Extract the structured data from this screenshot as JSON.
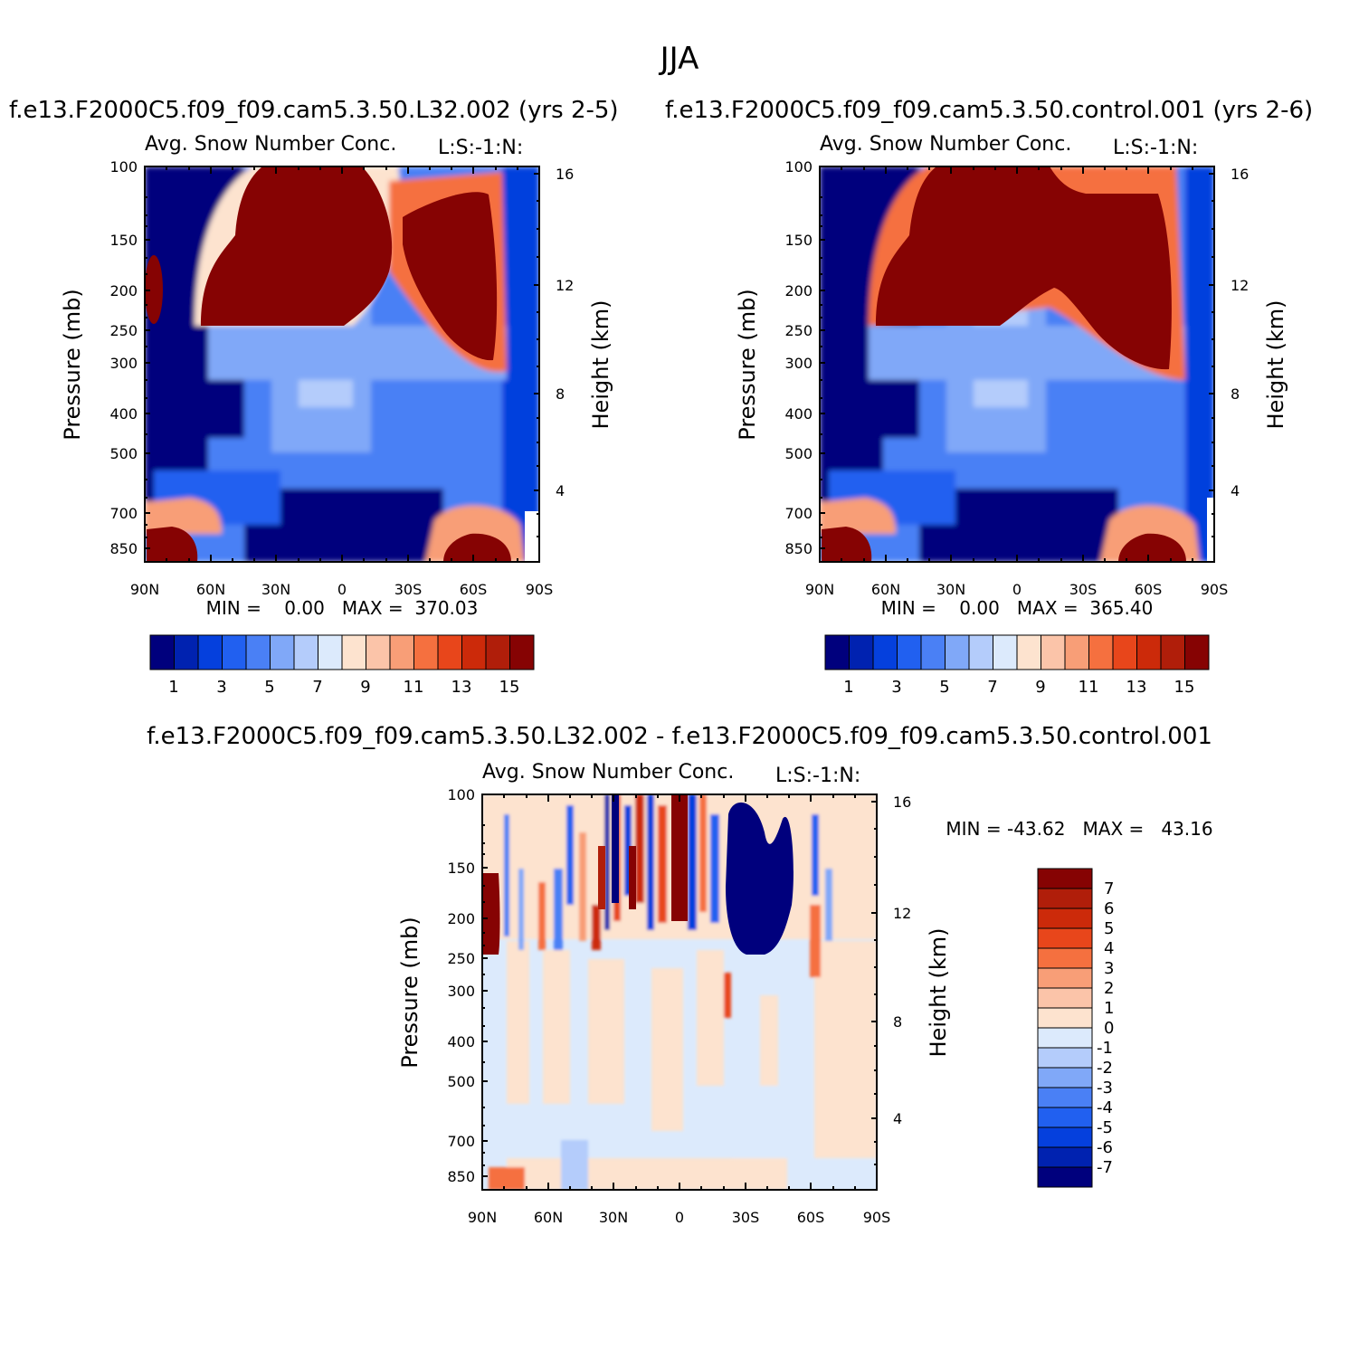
{
  "figure_title": "JJA",
  "colors": {
    "abs_scale": [
      "#00007d",
      "#0022b0",
      "#0540dd",
      "#2160f0",
      "#4a80f5",
      "#80a8f8",
      "#b4ccfb",
      "#dceafc",
      "#fde3cf",
      "#fbc4a9",
      "#f89e77",
      "#f5703f",
      "#e8461b",
      "#cc2a0a",
      "#b01e0a",
      "#860303"
    ],
    "diff_scale": [
      "#00007d",
      "#0022b0",
      "#0540dd",
      "#2160f0",
      "#4a80f5",
      "#80a8f8",
      "#b4ccfb",
      "#dceafc",
      "#fde3cf",
      "#fbc4a9",
      "#f89e77",
      "#f5703f",
      "#e8461b",
      "#cc2a0a",
      "#b01e0a",
      "#860303"
    ]
  },
  "chart_data": [
    {
      "type": "heatmap",
      "panel": "top-left",
      "title": "f.e13.F2000C5.f09_f09.cam5.3.50.L32.002 (yrs 2-5)",
      "subtitle": "Avg. Snow Number Conc.",
      "units_label": "L:S:-1:N:",
      "xlabel": "",
      "ylabel": "Pressure (mb)",
      "y2label": "Height (km)",
      "x_ticks": [
        "90N",
        "60N",
        "30N",
        "0",
        "30S",
        "60S",
        "90S"
      ],
      "y_ticks": [
        "100",
        "150",
        "200",
        "250",
        "300",
        "400",
        "500",
        "700",
        "850"
      ],
      "y2_ticks": [
        "16",
        "12",
        "8",
        "4"
      ],
      "stats": "MIN =    0.00   MAX =  370.03",
      "colorbar_labels": [
        "1",
        "3",
        "5",
        "7",
        "9",
        "11",
        "13",
        "15"
      ],
      "colorbar_levels": 16,
      "grid": false
    },
    {
      "type": "heatmap",
      "panel": "top-right",
      "title": "f.e13.F2000C5.f09_f09.cam5.3.50.control.001 (yrs 2-6)",
      "subtitle": "Avg. Snow Number Conc.",
      "units_label": "L:S:-1:N:",
      "xlabel": "",
      "ylabel": "Pressure (mb)",
      "y2label": "Height (km)",
      "x_ticks": [
        "90N",
        "60N",
        "30N",
        "0",
        "30S",
        "60S",
        "90S"
      ],
      "y_ticks": [
        "100",
        "150",
        "200",
        "250",
        "300",
        "400",
        "500",
        "700",
        "850"
      ],
      "y2_ticks": [
        "16",
        "12",
        "8",
        "4"
      ],
      "stats": "MIN =    0.00   MAX =  365.40",
      "colorbar_labels": [
        "1",
        "3",
        "5",
        "7",
        "9",
        "11",
        "13",
        "15"
      ],
      "colorbar_levels": 16,
      "grid": false
    },
    {
      "type": "heatmap",
      "panel": "bottom",
      "title": "f.e13.F2000C5.f09_f09.cam5.3.50.L32.002 - f.e13.F2000C5.f09_f09.cam5.3.50.control.001",
      "subtitle": "Avg. Snow Number Conc.",
      "units_label": "L:S:-1:N:",
      "xlabel": "",
      "ylabel": "Pressure (mb)",
      "y2label": "Height (km)",
      "x_ticks": [
        "90N",
        "60N",
        "30N",
        "0",
        "30S",
        "60S",
        "90S"
      ],
      "y_ticks": [
        "100",
        "150",
        "200",
        "250",
        "300",
        "400",
        "500",
        "700",
        "850"
      ],
      "y2_ticks": [
        "16",
        "12",
        "8",
        "4"
      ],
      "stats": "MIN = -43.62   MAX =   43.16",
      "colorbar_labels": [
        "7",
        "6",
        "5",
        "4",
        "3",
        "2",
        "1",
        "0",
        "-1",
        "-2",
        "-3",
        "-4",
        "-5",
        "-6",
        "-7"
      ],
      "colorbar_levels": 16,
      "grid": false
    }
  ]
}
